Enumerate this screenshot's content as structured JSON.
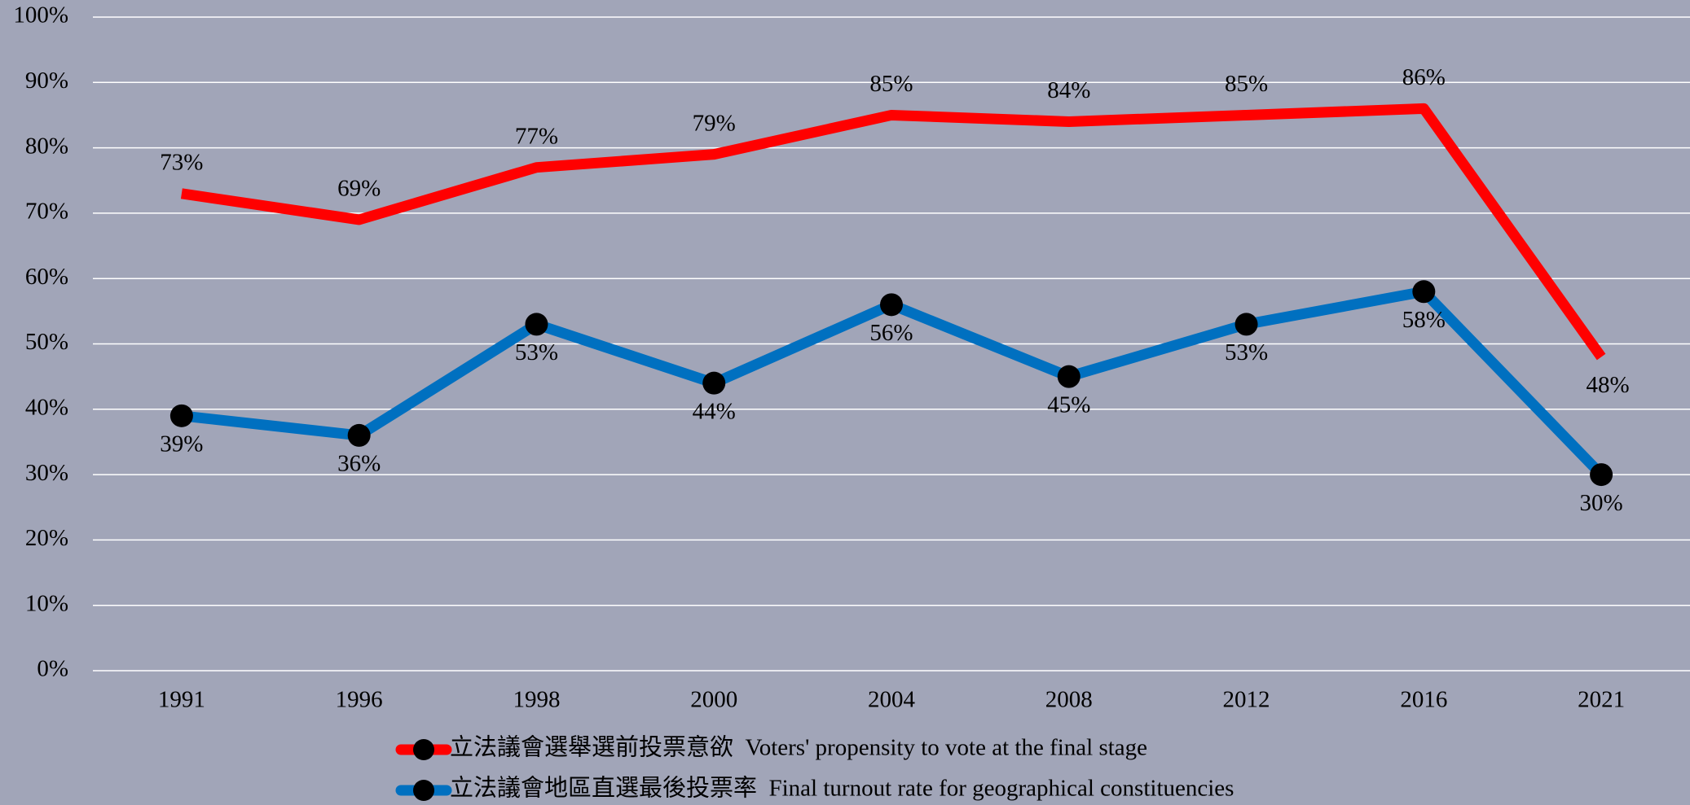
{
  "chart_data": {
    "type": "line",
    "categories": [
      "1991",
      "1996",
      "1998",
      "2000",
      "2004",
      "2008",
      "2012",
      "2016",
      "2021"
    ],
    "series": [
      {
        "name": "立法議會選舉選前投票意欲  Voters' propensity to vote at the final stage",
        "color": "#ff0000",
        "markers": false,
        "values": [
          73,
          69,
          77,
          79,
          85,
          84,
          85,
          86,
          48
        ],
        "value_labels": [
          "73%",
          "69%",
          "77%",
          "79%",
          "85%",
          "84%",
          "85%",
          "86%",
          "48%"
        ]
      },
      {
        "name": "立法議會地區直選最後投票率  Final turnout rate for geographical constituencies",
        "color": "#0070c0",
        "markers": true,
        "values": [
          39,
          36,
          53,
          44,
          56,
          45,
          53,
          58,
          30
        ],
        "value_labels": [
          "39%",
          "36%",
          "53%",
          "44%",
          "56%",
          "45%",
          "53%",
          "58%",
          "30%"
        ]
      }
    ],
    "ylim": [
      0,
      100
    ],
    "yticks": [
      {
        "value": 0,
        "label": "0%"
      },
      {
        "value": 10,
        "label": "10%"
      },
      {
        "value": 20,
        "label": "20%"
      },
      {
        "value": 30,
        "label": "30%"
      },
      {
        "value": 40,
        "label": "40%"
      },
      {
        "value": 50,
        "label": "50%"
      },
      {
        "value": 60,
        "label": "60%"
      },
      {
        "value": 70,
        "label": "70%"
      },
      {
        "value": 80,
        "label": "80%"
      },
      {
        "value": 90,
        "label": "90%"
      },
      {
        "value": 100,
        "label": "100%"
      }
    ],
    "grid": true,
    "legend": "bottom"
  }
}
